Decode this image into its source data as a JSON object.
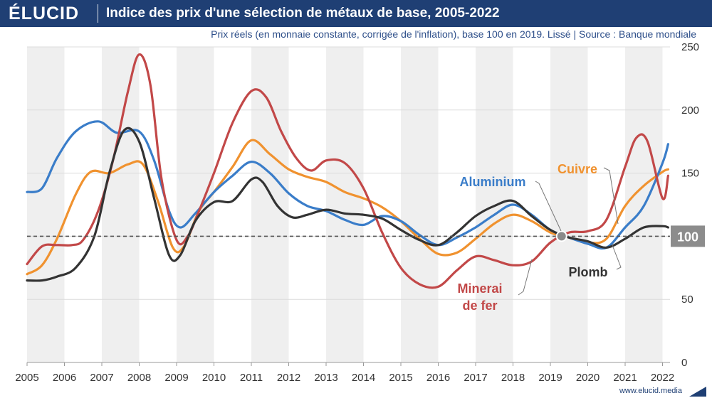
{
  "header": {
    "logo": "ÉLUCID",
    "title": "Indice des prix d'une sélection de métaux de base, 2005-2022",
    "subtitle": "Prix réels (en monnaie constante, corrigée de l'inflation), base 100 en 2019. Lissé  |  Source : Banque mondiale"
  },
  "footer": {
    "url": "www.elucid.media"
  },
  "colors": {
    "header_bg": "#1f3f74",
    "band": "#efefef",
    "reference_line": "#555555",
    "reference_badge": "#8c8c8c"
  },
  "chart_data": {
    "type": "line",
    "title": "Indice des prix d'une sélection de métaux de base, 2005-2022",
    "xlabel": "",
    "ylabel": "",
    "xlim": [
      2005,
      2022.2
    ],
    "ylim": [
      0,
      250
    ],
    "x_ticks": [
      "2005",
      "2006",
      "2007",
      "2008",
      "2009",
      "2010",
      "2011",
      "2012",
      "2013",
      "2014",
      "2015",
      "2016",
      "2017",
      "2018",
      "2019",
      "2020",
      "2021",
      "2022"
    ],
    "y_ticks": [
      "0",
      "50",
      "100",
      "150",
      "200",
      "250"
    ],
    "y_axis_side": "right",
    "grid": true,
    "reference": {
      "value": 100,
      "label": "100"
    },
    "series": [
      {
        "name": "Aluminium",
        "color": "#3a7dc9",
        "label_lines": [
          "Aluminium"
        ],
        "points": [
          [
            2005,
            135
          ],
          [
            2005.4,
            138
          ],
          [
            2005.8,
            162
          ],
          [
            2006.3,
            183
          ],
          [
            2006.9,
            191
          ],
          [
            2007.4,
            182
          ],
          [
            2008.0,
            183
          ],
          [
            2008.4,
            160
          ],
          [
            2008.8,
            120
          ],
          [
            2009.1,
            107
          ],
          [
            2009.5,
            118
          ],
          [
            2010.0,
            135
          ],
          [
            2010.5,
            148
          ],
          [
            2011.0,
            159
          ],
          [
            2011.5,
            150
          ],
          [
            2012.0,
            134
          ],
          [
            2012.5,
            124
          ],
          [
            2013.0,
            120
          ],
          [
            2013.5,
            113
          ],
          [
            2014.0,
            109
          ],
          [
            2014.5,
            116
          ],
          [
            2015.0,
            112
          ],
          [
            2015.5,
            101
          ],
          [
            2016.0,
            93
          ],
          [
            2016.5,
            99
          ],
          [
            2017.0,
            107
          ],
          [
            2017.5,
            117
          ],
          [
            2018.0,
            125
          ],
          [
            2018.5,
            117
          ],
          [
            2019.0,
            105
          ],
          [
            2019.5,
            99
          ],
          [
            2020.0,
            94
          ],
          [
            2020.5,
            91
          ],
          [
            2021.0,
            107
          ],
          [
            2021.5,
            124
          ],
          [
            2022.0,
            158
          ],
          [
            2022.15,
            173
          ]
        ]
      },
      {
        "name": "Cuivre",
        "color": "#f0922f",
        "label_lines": [
          "Cuivre"
        ],
        "points": [
          [
            2005,
            70
          ],
          [
            2005.4,
            77
          ],
          [
            2005.8,
            98
          ],
          [
            2006.3,
            133
          ],
          [
            2006.7,
            151
          ],
          [
            2007.2,
            150
          ],
          [
            2007.7,
            157
          ],
          [
            2008.1,
            157
          ],
          [
            2008.5,
            128
          ],
          [
            2008.9,
            91
          ],
          [
            2009.2,
            92
          ],
          [
            2009.6,
            120
          ],
          [
            2010.0,
            135
          ],
          [
            2010.5,
            155
          ],
          [
            2011.0,
            176
          ],
          [
            2011.5,
            165
          ],
          [
            2012.0,
            153
          ],
          [
            2012.5,
            147
          ],
          [
            2013.0,
            143
          ],
          [
            2013.5,
            135
          ],
          [
            2014.0,
            130
          ],
          [
            2014.5,
            123
          ],
          [
            2015.0,
            112
          ],
          [
            2015.5,
            98
          ],
          [
            2016.0,
            86
          ],
          [
            2016.5,
            87
          ],
          [
            2017.0,
            98
          ],
          [
            2017.5,
            110
          ],
          [
            2018.0,
            117
          ],
          [
            2018.5,
            112
          ],
          [
            2019.0,
            103
          ],
          [
            2019.5,
            99
          ],
          [
            2020.0,
            95
          ],
          [
            2020.5,
            98
          ],
          [
            2021.0,
            124
          ],
          [
            2021.5,
            140
          ],
          [
            2022.0,
            151
          ],
          [
            2022.15,
            153
          ]
        ]
      },
      {
        "name": "Minerai de fer",
        "color": "#c24848",
        "label_lines": [
          "Minerai",
          "de fer"
        ],
        "points": [
          [
            2005,
            78
          ],
          [
            2005.4,
            92
          ],
          [
            2005.8,
            93
          ],
          [
            2006.2,
            93
          ],
          [
            2006.5,
            97
          ],
          [
            2006.9,
            120
          ],
          [
            2007.3,
            160
          ],
          [
            2007.7,
            215
          ],
          [
            2008.0,
            244
          ],
          [
            2008.3,
            220
          ],
          [
            2008.6,
            145
          ],
          [
            2009.0,
            97
          ],
          [
            2009.3,
            100
          ],
          [
            2009.6,
            120
          ],
          [
            2010.0,
            150
          ],
          [
            2010.5,
            190
          ],
          [
            2011.0,
            215
          ],
          [
            2011.4,
            210
          ],
          [
            2011.8,
            183
          ],
          [
            2012.2,
            162
          ],
          [
            2012.6,
            152
          ],
          [
            2013.0,
            160
          ],
          [
            2013.5,
            158
          ],
          [
            2014.0,
            138
          ],
          [
            2014.5,
            103
          ],
          [
            2015.0,
            75
          ],
          [
            2015.5,
            62
          ],
          [
            2016.0,
            60
          ],
          [
            2016.5,
            73
          ],
          [
            2017.0,
            84
          ],
          [
            2017.5,
            81
          ],
          [
            2018.0,
            77
          ],
          [
            2018.5,
            80
          ],
          [
            2019.0,
            95
          ],
          [
            2019.5,
            103
          ],
          [
            2020.0,
            104
          ],
          [
            2020.5,
            113
          ],
          [
            2021.0,
            155
          ],
          [
            2021.3,
            178
          ],
          [
            2021.6,
            175
          ],
          [
            2022.0,
            130
          ],
          [
            2022.15,
            148
          ]
        ]
      },
      {
        "name": "Plomb",
        "color": "#333333",
        "label_lines": [
          "Plomb"
        ],
        "points": [
          [
            2005,
            65
          ],
          [
            2005.4,
            65
          ],
          [
            2005.8,
            68
          ],
          [
            2006.3,
            75
          ],
          [
            2006.8,
            100
          ],
          [
            2007.2,
            150
          ],
          [
            2007.6,
            184
          ],
          [
            2008.0,
            175
          ],
          [
            2008.4,
            130
          ],
          [
            2008.8,
            85
          ],
          [
            2009.1,
            85
          ],
          [
            2009.5,
            112
          ],
          [
            2010.0,
            127
          ],
          [
            2010.5,
            128
          ],
          [
            2011.0,
            145
          ],
          [
            2011.3,
            143
          ],
          [
            2011.7,
            124
          ],
          [
            2012.1,
            115
          ],
          [
            2012.5,
            117
          ],
          [
            2013.0,
            121
          ],
          [
            2013.5,
            118
          ],
          [
            2014.0,
            117
          ],
          [
            2014.5,
            114
          ],
          [
            2015.0,
            105
          ],
          [
            2015.5,
            97
          ],
          [
            2016.0,
            93
          ],
          [
            2016.5,
            103
          ],
          [
            2017.0,
            116
          ],
          [
            2017.5,
            124
          ],
          [
            2018.0,
            128
          ],
          [
            2018.5,
            116
          ],
          [
            2019.0,
            105
          ],
          [
            2019.5,
            99
          ],
          [
            2020.0,
            96
          ],
          [
            2020.5,
            91
          ],
          [
            2021.0,
            98
          ],
          [
            2021.5,
            107
          ],
          [
            2022.0,
            108
          ],
          [
            2022.15,
            107
          ]
        ]
      }
    ]
  }
}
